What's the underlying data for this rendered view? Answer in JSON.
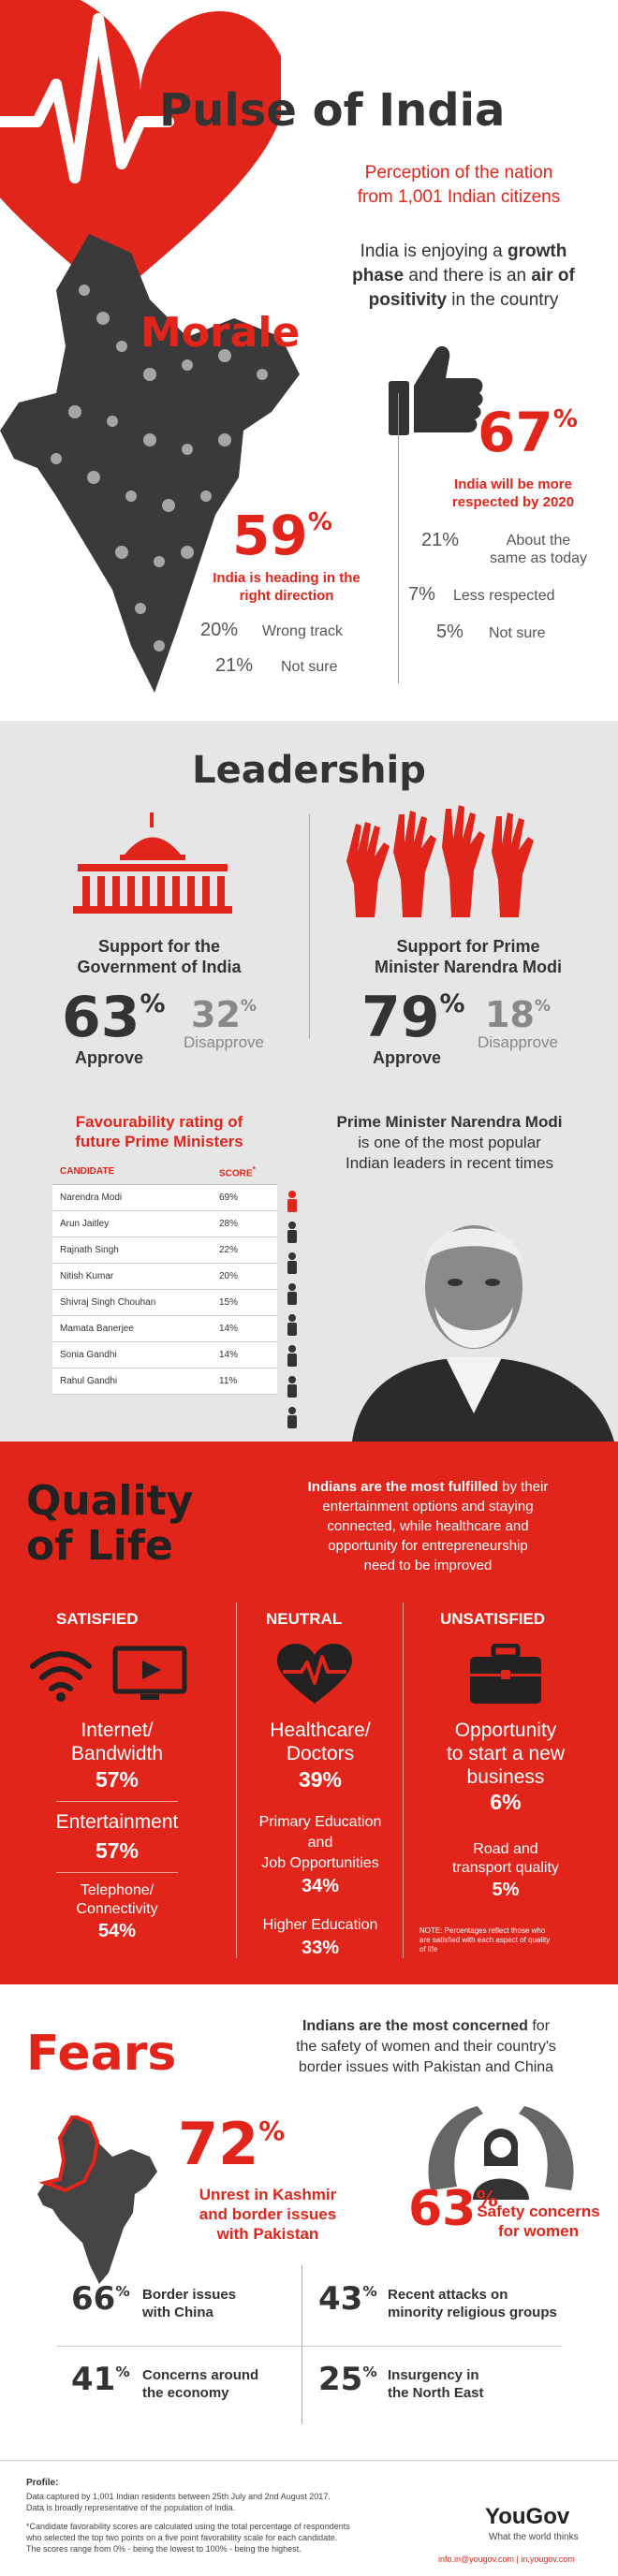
{
  "header": {
    "title": "Pulse of India",
    "subtitle_line1": "Perception of the nation",
    "subtitle_line2": "from 1,001 Indian citizens"
  },
  "morale": {
    "intro_line1_pre": "India is enjoying a ",
    "intro_line1_bold": "growth",
    "intro_line2_bold": "phase",
    "intro_line2_mid": " and there is an ",
    "intro_line2_bold2": "air of",
    "intro_line3_bold": "positivity",
    "intro_line3_post": " in the country",
    "heading": "Morale",
    "respected_pct": "67",
    "respected_label_line1": "India will be more",
    "respected_label_line2": "respected by 2020",
    "same_pct": "21%",
    "same_label_line1": "About the",
    "same_label_line2": "same as today",
    "less_pct": "7%",
    "less_label": "Less respected",
    "notsure2_pct": "5%",
    "notsure2_label": "Not sure",
    "direction_pct": "59",
    "direction_label_line1": "India is heading in the",
    "direction_label_line2": "right direction",
    "wrong_pct": "20%",
    "wrong_label": "Wrong track",
    "notsure1_pct": "21%",
    "notsure1_label": "Not sure"
  },
  "leadership": {
    "heading": "Leadership",
    "gov_label_line1": "Support for the",
    "gov_label_line2": "Government of India",
    "gov_approve_pct": "63",
    "gov_approve_label": "Approve",
    "gov_disapprove_pct": "32",
    "gov_disapprove_label": "Disapprove",
    "modi_label_line1": "Support for Prime",
    "modi_label_line2": "Minister Narendra Modi",
    "modi_approve_pct": "79",
    "modi_approve_label": "Approve",
    "modi_disapprove_pct": "18",
    "modi_disapprove_label": "Disapprove",
    "fav_title_line1": "Favourability rating of",
    "fav_title_line2": "future Prime Ministers",
    "fav_col_candidate": "CANDIDATE",
    "fav_col_score": "SCORE",
    "fav_col_score_mark": "*",
    "candidates": [
      {
        "name": "Narendra Modi",
        "score": "69%"
      },
      {
        "name": "Arun Jaitley",
        "score": "28%"
      },
      {
        "name": "Rajnath Singh",
        "score": "22%"
      },
      {
        "name": "Nitish Kumar",
        "score": "20%"
      },
      {
        "name": "Shivraj Singh Chouhan",
        "score": "15%"
      },
      {
        "name": "Mamata Banerjee",
        "score": "14%"
      },
      {
        "name": "Sonia Gandhi",
        "score": "14%"
      },
      {
        "name": "Rahul Gandhi",
        "score": "11%"
      }
    ],
    "modi_note_line1_bold": "Prime Minister Narendra Modi",
    "modi_note_line2": "is one of the most popular",
    "modi_note_line3": "Indian leaders in recent times"
  },
  "quality": {
    "heading_line1": "Quality",
    "heading_line2": "of Life",
    "intro_line1_bold": "Indians are the most fulfilled",
    "intro_line1_post": " by their",
    "intro_line2": "entertainment options and staying",
    "intro_line3": "connected, while healthcare and",
    "intro_line4": "opportunity for entrepreneurship",
    "intro_line5": "need to be improved",
    "satisfied": "SATISFIED",
    "neutral": "NEUTRAL",
    "unsatisfied": "UNSATISFIED",
    "internet_line1": "Internet/",
    "internet_line2": "Bandwidth",
    "internet_pct": "57%",
    "entertainment": "Entertainment",
    "entertainment_pct": "57%",
    "telephone_line1": "Telephone/",
    "telephone_line2": "Connectivity",
    "telephone_pct": "54%",
    "health_line1": "Healthcare/",
    "health_line2": "Doctors",
    "health_pct": "39%",
    "primary_line1": "Primary Education",
    "primary_line2": "and",
    "primary_line3": "Job Opportunities",
    "primary_pct": "34%",
    "higher": "Higher Education",
    "higher_pct": "33%",
    "opp_line1": "Opportunity",
    "opp_line2": "to start a new",
    "opp_line3": "business",
    "opp_pct": "6%",
    "road_line1": "Road and",
    "road_line2": "transport quality",
    "road_pct": "5%",
    "note_line1": "NOTE: Percentages reflect those who",
    "note_line2": "are satisfied with each aspect of quality",
    "note_line3": "of life"
  },
  "fears": {
    "heading": "Fears",
    "intro_line1_bold": "Indians are the most concerned",
    "intro_line1_post": " for",
    "intro_line2": "the safety of women and their country's",
    "intro_line3": "border issues with Pakistan and China",
    "kashmir_pct": "72",
    "kashmir_label_line1": "Unrest in Kashmir",
    "kashmir_label_line2": "and border issues",
    "kashmir_label_line3": "with Pakistan",
    "women_pct": "63",
    "women_label_line1": "Safety concerns",
    "women_label_line2": "for women",
    "china_pct": "66",
    "china_label_line1": "Border issues",
    "china_label_line2": "with China",
    "minority_pct": "43",
    "minority_label_line1": "Recent attacks on",
    "minority_label_line2": "minority religious groups",
    "economy_pct": "41",
    "economy_label_line1": "Concerns around",
    "economy_label_line2": "the economy",
    "insurgency_pct": "25",
    "insurgency_label_line1": "Insurgency in",
    "insurgency_label_line2": "the North East"
  },
  "footer": {
    "profile": "Profile:",
    "line1": "Data captured by 1,001 Indian residents between 25th July and 2nd August 2017.",
    "line2": "Data is broadly representative of the population of India.",
    "line3": "*Candidate favorability scores are calculated using the total percentage of respondents",
    "line4": "who selected the top two points on a five point favorability scale for each candidate.",
    "line5": "The scores range from 0% - being the lowest to 100% - being the highest.",
    "brand": "YouGov",
    "tagline": "What the world thinks",
    "contact": "info.in@yougov.com  |  in.yougov.com"
  },
  "colors": {
    "accent": "#e1251b",
    "dark": "#333333",
    "grey_bg": "#e6e6e6"
  }
}
